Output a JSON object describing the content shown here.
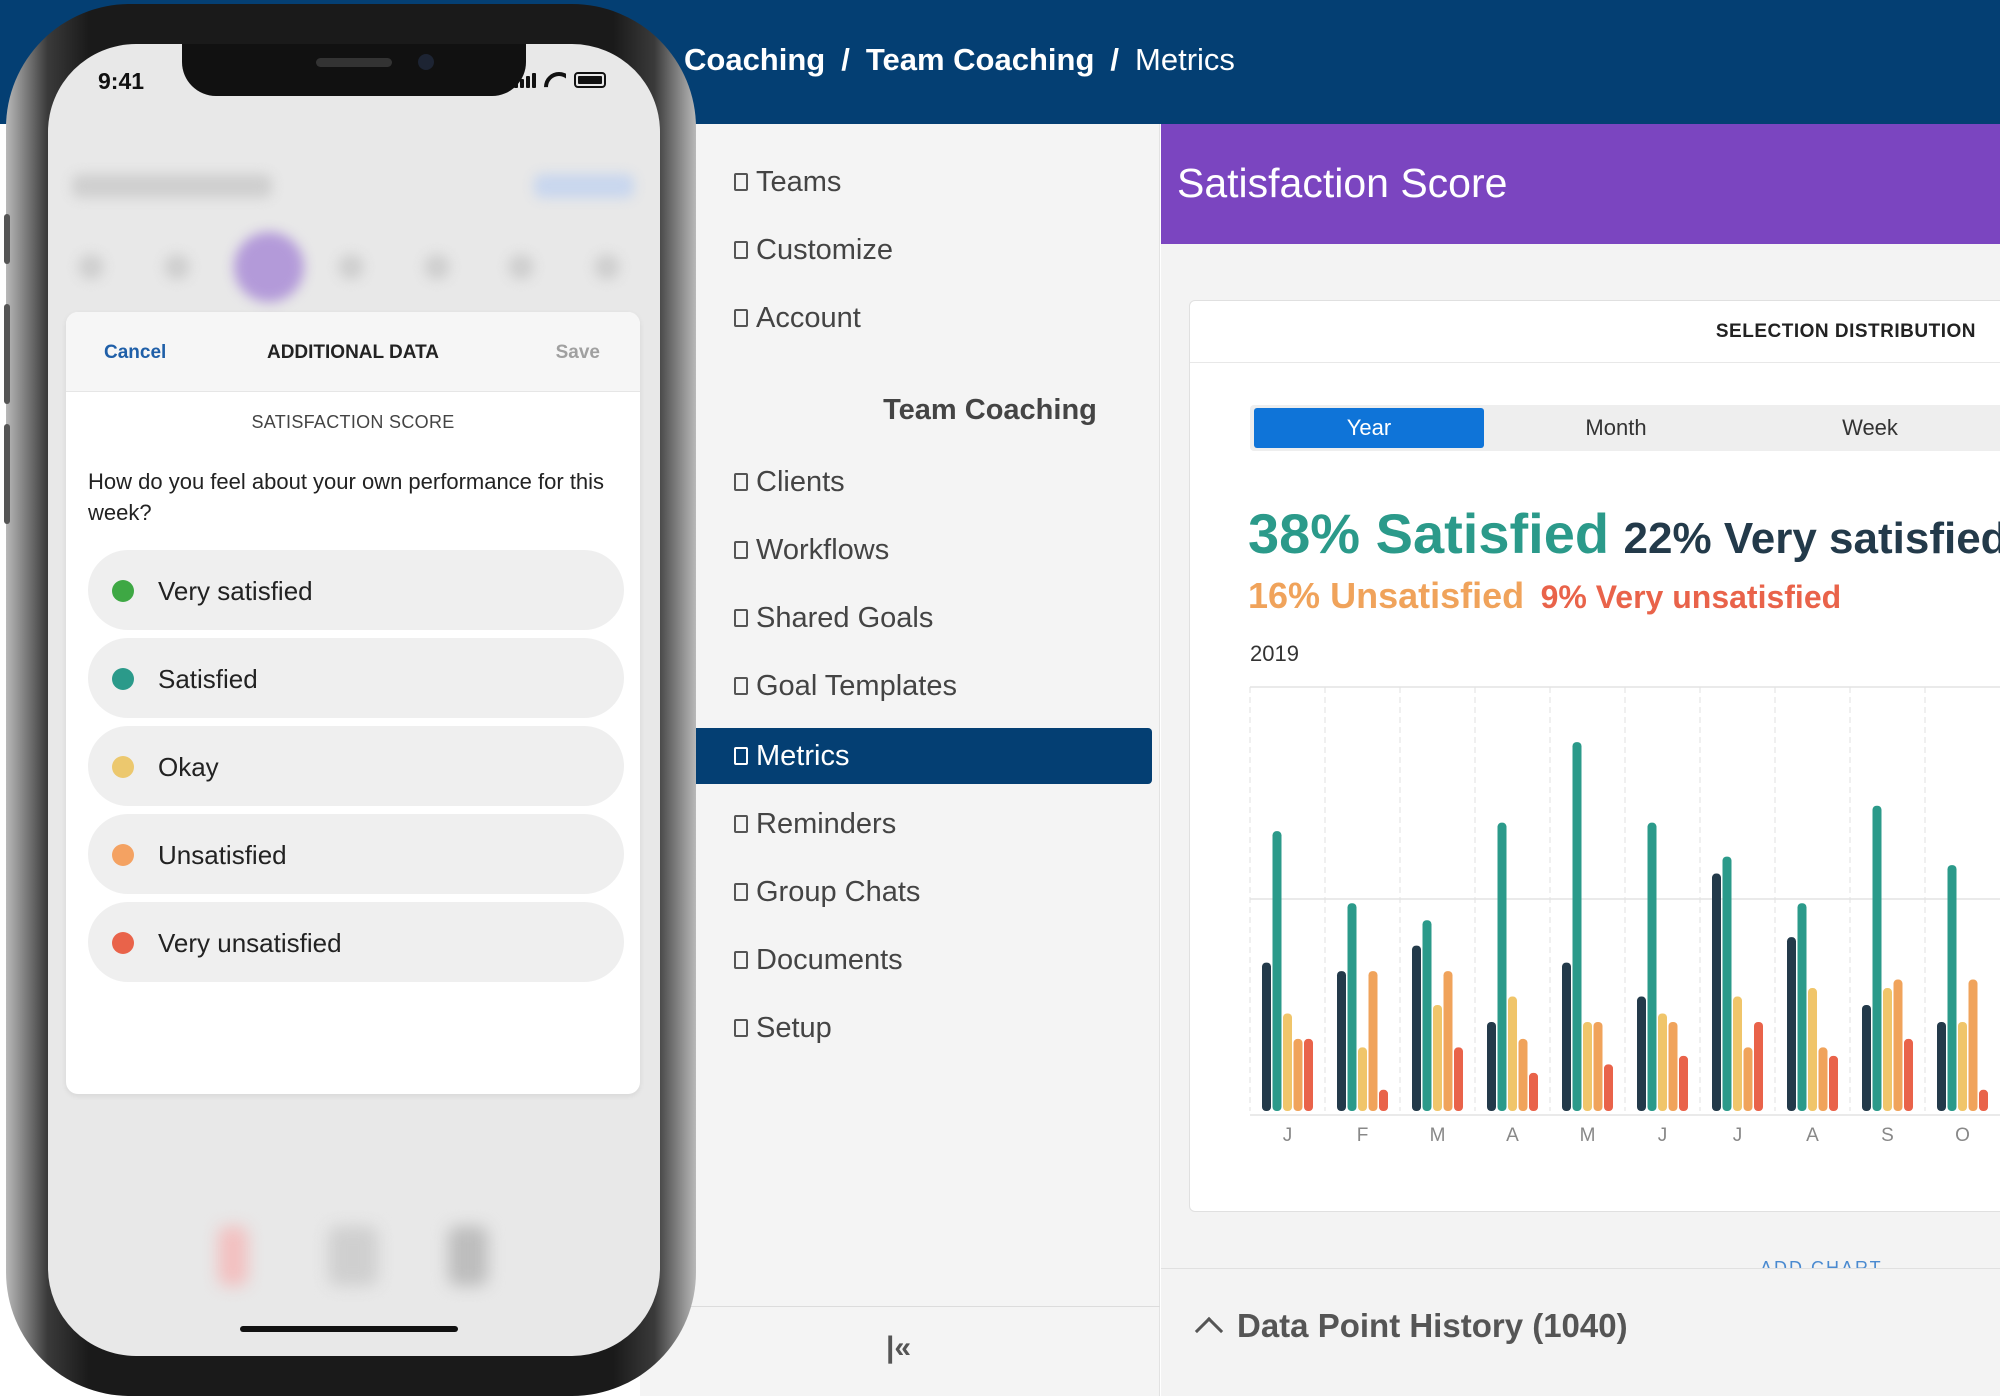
{
  "breadcrumb": {
    "item1": "Coaching",
    "item2": "Team Coaching",
    "item3": "Metrics",
    "separator": "/"
  },
  "sidebar": {
    "items_top": [
      {
        "label": "Teams"
      },
      {
        "label": "Customize"
      },
      {
        "label": "Account"
      }
    ],
    "section_title": "Team Coaching",
    "items": [
      {
        "label": "Clients"
      },
      {
        "label": "Workflows"
      },
      {
        "label": "Shared Goals"
      },
      {
        "label": "Goal Templates"
      },
      {
        "label": "Metrics",
        "active": true
      },
      {
        "label": "Reminders"
      },
      {
        "label": "Group Chats"
      },
      {
        "label": "Documents"
      },
      {
        "label": "Setup"
      }
    ],
    "collapse_glyph": "|«"
  },
  "metric": {
    "title": "Satisfaction Score",
    "card_title": "SELECTION DISTRIBUTION",
    "tabs": [
      {
        "label": "Year",
        "active": true
      },
      {
        "label": "Month"
      },
      {
        "label": "Week"
      }
    ],
    "summary": {
      "satisfied_pct": "38%",
      "satisfied_label": "Satisfied",
      "very_satisfied_pct": "22%",
      "very_satisfied_label": "Very satisfied",
      "unsatisfied_pct": "16%",
      "unsatisfied_label": "Unsatisfied",
      "very_unsatisfied_pct": "9%",
      "very_unsatisfied_label": "Very unsatisfied"
    },
    "chart_label": "2019",
    "add_chart": "ADD CHART",
    "history_title": "Data Point History (1040)"
  },
  "chart_data": {
    "type": "bar",
    "categories": [
      "J",
      "F",
      "M",
      "A",
      "M",
      "J",
      "J",
      "A",
      "S",
      "O"
    ],
    "ylim": [
      0,
      100
    ],
    "grid": true,
    "series": [
      {
        "name": "Very satisfied",
        "color": "#233a4a",
        "values": [
          35,
          33,
          39,
          21,
          35,
          27,
          56,
          41,
          25,
          21
        ]
      },
      {
        "name": "Satisfied",
        "color": "#2b9a8a",
        "values": [
          66,
          49,
          45,
          68,
          87,
          68,
          60,
          49,
          72,
          58
        ]
      },
      {
        "name": "Okay",
        "color": "#f0c56a",
        "values": [
          23,
          15,
          25,
          27,
          21,
          23,
          27,
          29,
          29,
          21
        ]
      },
      {
        "name": "Unsatisfied",
        "color": "#f0a35b",
        "values": [
          17,
          33,
          33,
          17,
          21,
          21,
          15,
          15,
          31,
          31
        ]
      },
      {
        "name": "Very unsatisfied",
        "color": "#e9634a",
        "values": [
          17,
          5,
          15,
          9,
          11,
          13,
          21,
          13,
          17,
          5
        ]
      }
    ]
  },
  "phone": {
    "time": "9:41",
    "modal": {
      "cancel_label": "Cancel",
      "title": "ADDITIONAL DATA",
      "save_label": "Save",
      "subtitle": "SATISFACTION SCORE",
      "question": "How do you feel about your own performance for this week?",
      "options": [
        {
          "label": "Very satisfied",
          "color": "#3ea844"
        },
        {
          "label": "Satisfied",
          "color": "#2b9a8a"
        },
        {
          "label": "Okay",
          "color": "#ecc86e"
        },
        {
          "label": "Unsatisfied",
          "color": "#f4a262"
        },
        {
          "label": "Very unsatisfied",
          "color": "#e9634a"
        }
      ]
    }
  }
}
